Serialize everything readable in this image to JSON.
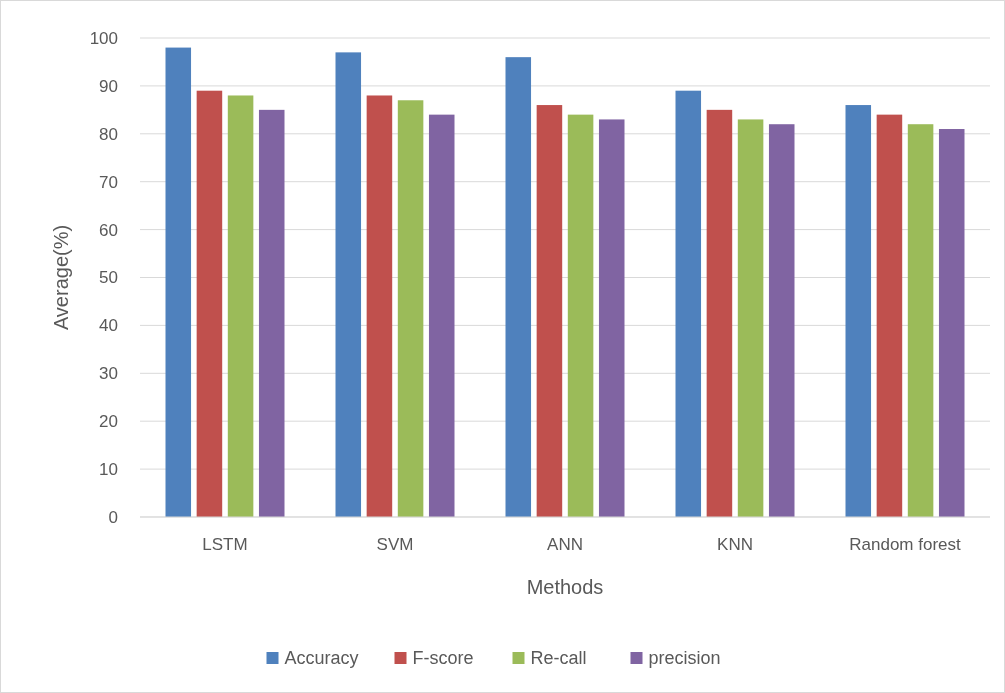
{
  "chart_data": {
    "type": "bar",
    "xlabel": "Methods",
    "ylabel": "Average(%)",
    "categories": [
      "LSTM",
      "SVM",
      "ANN",
      "KNN",
      "Random forest"
    ],
    "series": [
      {
        "name": "Accuracy",
        "color": "#4f81bd",
        "values": [
          98,
          97,
          96,
          89,
          86
        ]
      },
      {
        "name": "F-score",
        "color": "#c0504d",
        "values": [
          89,
          88,
          86,
          85,
          84
        ]
      },
      {
        "name": "Re-call",
        "color": "#9bbb59",
        "values": [
          88,
          87,
          84,
          83,
          82
        ]
      },
      {
        "name": "precision",
        "color": "#8064a2",
        "values": [
          85,
          84,
          83,
          82,
          81
        ]
      }
    ],
    "ylim": [
      0,
      100
    ],
    "yticks": [
      0,
      10,
      20,
      30,
      40,
      50,
      60,
      70,
      80,
      90,
      100
    ],
    "grid": "y",
    "legend": "bottom"
  }
}
